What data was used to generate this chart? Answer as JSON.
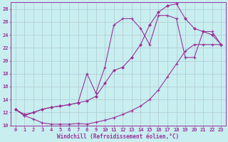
{
  "xlabel": "Windchill (Refroidissement éolien,°C)",
  "bg_color": "#c8eef0",
  "grid_color": "#b0c8d0",
  "line_color": "#993399",
  "xlim": [
    -0.5,
    23.5
  ],
  "ylim": [
    10,
    29
  ],
  "xticks": [
    0,
    1,
    2,
    3,
    4,
    5,
    6,
    7,
    8,
    9,
    10,
    11,
    12,
    13,
    14,
    15,
    16,
    17,
    18,
    19,
    20,
    21,
    22,
    23
  ],
  "yticks": [
    10,
    12,
    14,
    16,
    18,
    20,
    22,
    24,
    26,
    28
  ],
  "line1_x": [
    0,
    1,
    2,
    3,
    4,
    5,
    6,
    7,
    8,
    9,
    10,
    11,
    12,
    13,
    14,
    15,
    16,
    17,
    18,
    19,
    20,
    21,
    22,
    23
  ],
  "line1_y": [
    12.5,
    11.5,
    11.0,
    10.4,
    10.2,
    10.2,
    10.2,
    10.3,
    10.2,
    10.5,
    10.8,
    11.2,
    11.7,
    12.3,
    13.0,
    14.0,
    15.5,
    17.5,
    19.5,
    21.5,
    22.5,
    22.5,
    22.5,
    22.5
  ],
  "line2_x": [
    0,
    1,
    2,
    3,
    4,
    5,
    6,
    7,
    8,
    9,
    10,
    11,
    12,
    13,
    14,
    15,
    16,
    17,
    18,
    19,
    20,
    21,
    22,
    23
  ],
  "line2_y": [
    12.5,
    11.7,
    12.0,
    12.5,
    12.8,
    13.0,
    13.2,
    13.5,
    13.8,
    14.5,
    16.5,
    18.5,
    19.0,
    20.5,
    22.5,
    25.5,
    27.5,
    28.5,
    28.8,
    26.5,
    25.0,
    24.5,
    24.0,
    22.5
  ],
  "line3_x": [
    0,
    1,
    2,
    3,
    4,
    5,
    6,
    7,
    8,
    9,
    10,
    11,
    12,
    13,
    14,
    15,
    16,
    17,
    18,
    19,
    20,
    21,
    22,
    23
  ],
  "line3_y": [
    12.5,
    11.5,
    12.0,
    12.5,
    12.8,
    13.0,
    13.2,
    13.5,
    18.0,
    15.0,
    19.0,
    25.5,
    26.5,
    26.5,
    25.0,
    22.5,
    27.0,
    27.0,
    26.5,
    20.5,
    20.5,
    24.5,
    24.5,
    22.5
  ]
}
